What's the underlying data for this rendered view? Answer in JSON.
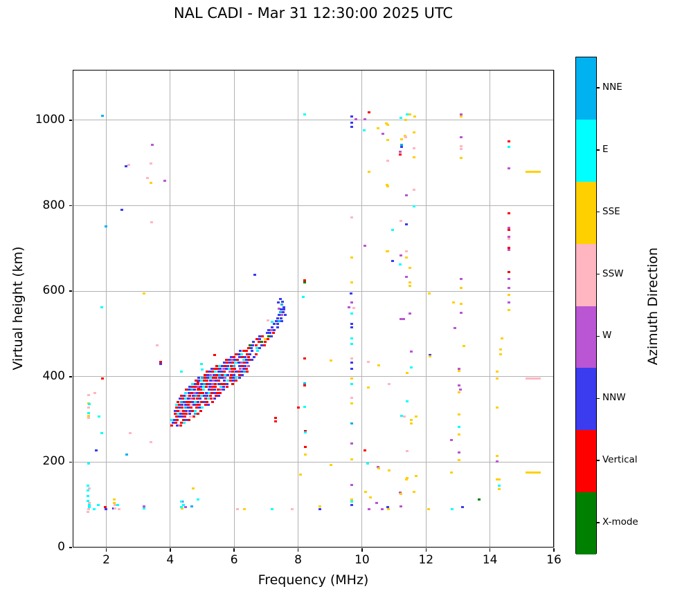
{
  "title": "NAL CADI - Mar 31 12:30:00 2025 UTC",
  "chart_data": {
    "type": "scatter",
    "title": "NAL CADI - Mar 31 12:30:00 2025 UTC",
    "xlabel": "Frequency (MHz)",
    "ylabel": "Virtual height (km)",
    "xlim": [
      0.95,
      16
    ],
    "ylim": [
      0,
      1118
    ],
    "x_ticks": [
      2,
      4,
      6,
      8,
      10,
      12,
      14,
      16
    ],
    "y_ticks": [
      0,
      200,
      400,
      600,
      800,
      1000
    ],
    "grid": true,
    "legend_title": "Azimuth Direction",
    "categories": [
      {
        "key": "N",
        "label": "NNE",
        "color": "#00B2F0"
      },
      {
        "key": "E",
        "label": "E",
        "color": "#00FFFF"
      },
      {
        "key": "S",
        "label": "SSE",
        "color": "#FFD000"
      },
      {
        "key": "s",
        "label": "SSW",
        "color": "#FFB6C1"
      },
      {
        "key": "W",
        "label": "W",
        "color": "#BA55D3"
      },
      {
        "key": "n",
        "label": "NNW",
        "color": "#3B3BF0"
      },
      {
        "key": "V",
        "label": "Vertical",
        "color": "#FF0000"
      },
      {
        "key": "X",
        "label": "X-mode",
        "color": "#008000"
      }
    ],
    "points": [
      [
        1.89,
        1010,
        "N"
      ],
      [
        3.43,
        943,
        "W"
      ],
      [
        2.71,
        896,
        "s"
      ],
      [
        2.61,
        892,
        "n"
      ],
      [
        3.39,
        898,
        "s"
      ],
      [
        3.28,
        864,
        "s"
      ],
      [
        3.39,
        853,
        "S"
      ],
      [
        3.82,
        858,
        "W"
      ],
      [
        2.48,
        790,
        "n"
      ],
      [
        3.41,
        762,
        "s"
      ],
      [
        1.98,
        752,
        "N"
      ],
      [
        3.19,
        594,
        "S"
      ],
      [
        1.85,
        563,
        "E"
      ],
      [
        3.6,
        474,
        "s"
      ],
      [
        3.69,
        435,
        "V"
      ],
      [
        3.69,
        430,
        "n"
      ],
      [
        1.89,
        396,
        "V"
      ],
      [
        1.65,
        362,
        "s"
      ],
      [
        1.44,
        356,
        "s"
      ],
      [
        1.44,
        338,
        "S"
      ],
      [
        1.46,
        335,
        "E"
      ],
      [
        1.44,
        327,
        "s"
      ],
      [
        1.44,
        314,
        "E"
      ],
      [
        1.44,
        309,
        "S"
      ],
      [
        1.44,
        304,
        "s"
      ],
      [
        1.78,
        307,
        "E"
      ],
      [
        1.85,
        267,
        "E"
      ],
      [
        2.74,
        267,
        "s"
      ],
      [
        1.68,
        227,
        "n"
      ],
      [
        2.63,
        218,
        "N"
      ],
      [
        3.39,
        246,
        "s"
      ],
      [
        1.44,
        197,
        "E"
      ],
      [
        1.42,
        144,
        "E"
      ],
      [
        1.46,
        139,
        "s"
      ],
      [
        1.42,
        133,
        "E"
      ],
      [
        1.42,
        121,
        "E"
      ],
      [
        1.42,
        110,
        "E"
      ],
      [
        1.46,
        105,
        "s"
      ],
      [
        1.48,
        100,
        "E"
      ],
      [
        1.48,
        94,
        "E"
      ],
      [
        1.44,
        89,
        "s"
      ],
      [
        1.42,
        84,
        "s"
      ],
      [
        1.63,
        89,
        "E"
      ],
      [
        1.76,
        100,
        "E"
      ],
      [
        1.96,
        94,
        "V"
      ],
      [
        2.0,
        89,
        "n"
      ],
      [
        2.22,
        91,
        "n"
      ],
      [
        2.26,
        112,
        "S"
      ],
      [
        2.26,
        105,
        "S"
      ],
      [
        2.28,
        99,
        "s"
      ],
      [
        2.28,
        92,
        "s"
      ],
      [
        2.41,
        89,
        "s"
      ],
      [
        2.35,
        100,
        "E"
      ],
      [
        3.19,
        97,
        "W"
      ],
      [
        3.19,
        91,
        "E"
      ],
      [
        4.71,
        139,
        "S"
      ],
      [
        4.86,
        113,
        "E"
      ],
      [
        4.38,
        107,
        "n"
      ],
      [
        4.42,
        100,
        "E"
      ],
      [
        4.49,
        94,
        "W"
      ],
      [
        4.38,
        91,
        "S"
      ],
      [
        4.68,
        97,
        "N"
      ],
      [
        4.36,
        108,
        "E"
      ],
      [
        4.36,
        95,
        "E"
      ],
      [
        6.11,
        89,
        "s"
      ],
      [
        6.31,
        89,
        "S"
      ],
      [
        7.19,
        89,
        "E"
      ],
      [
        7.82,
        89,
        "s"
      ],
      [
        8.69,
        97,
        "S"
      ],
      [
        8.69,
        89,
        "n"
      ],
      [
        9.68,
        146,
        "W"
      ],
      [
        9.68,
        113,
        "S"
      ],
      [
        9.68,
        107,
        "E"
      ],
      [
        9.68,
        100,
        "n"
      ],
      [
        10.1,
        131,
        "S"
      ],
      [
        10.27,
        117,
        "S"
      ],
      [
        10.22,
        89,
        "W"
      ],
      [
        10.46,
        105,
        "W"
      ],
      [
        10.64,
        89,
        "W"
      ],
      [
        10.83,
        89,
        "S"
      ],
      [
        10.81,
        94,
        "n"
      ],
      [
        11.22,
        97,
        "W"
      ],
      [
        11.2,
        128,
        "W"
      ],
      [
        11.22,
        125,
        "S"
      ],
      [
        11.39,
        160,
        "S"
      ],
      [
        11.63,
        131,
        "S"
      ],
      [
        12.09,
        89,
        "S"
      ],
      [
        12.82,
        89,
        "E"
      ],
      [
        13.15,
        95,
        "n"
      ],
      [
        13.67,
        112,
        "X"
      ],
      [
        14.3,
        159,
        "S"
      ],
      [
        14.3,
        144,
        "E"
      ],
      [
        14.3,
        136,
        "S"
      ],
      [
        8.21,
        1013,
        "E"
      ],
      [
        9.68,
        1008,
        "n"
      ],
      [
        9.81,
        1002,
        "W"
      ],
      [
        10.09,
        1002,
        "W"
      ],
      [
        9.68,
        995,
        "n"
      ],
      [
        9.68,
        984,
        "n"
      ],
      [
        10.22,
        1018,
        "V"
      ],
      [
        10.07,
        976,
        "E"
      ],
      [
        10.51,
        981,
        "S"
      ],
      [
        10.81,
        990,
        "S"
      ],
      [
        10.66,
        969,
        "W"
      ],
      [
        10.81,
        953,
        "S"
      ],
      [
        10.81,
        906,
        "s"
      ],
      [
        10.22,
        879,
        "S"
      ],
      [
        10.81,
        846,
        "S"
      ],
      [
        9.68,
        772,
        "s"
      ],
      [
        10.09,
        707,
        "W"
      ],
      [
        10.81,
        693,
        "S"
      ],
      [
        9.68,
        678,
        "S"
      ],
      [
        8.21,
        626,
        "V"
      ],
      [
        8.21,
        621,
        "X"
      ],
      [
        9.68,
        620,
        "S"
      ],
      [
        11.41,
        1013,
        "E"
      ],
      [
        11.5,
        1013,
        "S"
      ],
      [
        11.65,
        1008,
        "S"
      ],
      [
        11.22,
        1006,
        "E"
      ],
      [
        11.37,
        1000,
        "S"
      ],
      [
        10.77,
        992,
        "S"
      ],
      [
        11.63,
        972,
        "S"
      ],
      [
        11.35,
        964,
        "S"
      ],
      [
        11.37,
        960,
        "s"
      ],
      [
        11.24,
        955,
        "S"
      ],
      [
        11.24,
        943,
        "N"
      ],
      [
        11.24,
        938,
        "n"
      ],
      [
        11.63,
        935,
        "s"
      ],
      [
        11.2,
        926,
        "W"
      ],
      [
        11.2,
        919,
        "V"
      ],
      [
        11.63,
        913,
        "S"
      ],
      [
        13.1,
        1013,
        "W"
      ],
      [
        13.1,
        1008,
        "S"
      ],
      [
        13.1,
        961,
        "W"
      ],
      [
        13.1,
        940,
        "s"
      ],
      [
        13.1,
        932,
        "s"
      ],
      [
        13.1,
        911,
        "S"
      ],
      [
        10.79,
        848,
        "S"
      ],
      [
        11.63,
        838,
        "s"
      ],
      [
        11.39,
        824,
        "W"
      ],
      [
        11.63,
        799,
        "E"
      ],
      [
        11.22,
        764,
        "s"
      ],
      [
        11.39,
        757,
        "n"
      ],
      [
        10.96,
        744,
        "E"
      ],
      [
        10.79,
        694,
        "S"
      ],
      [
        11.39,
        693,
        "s"
      ],
      [
        11.22,
        683,
        "W"
      ],
      [
        11.39,
        678,
        "S"
      ],
      [
        10.96,
        671,
        "n"
      ],
      [
        11.2,
        663,
        "E"
      ],
      [
        11.5,
        654,
        "S"
      ],
      [
        11.39,
        633,
        "W"
      ],
      [
        11.5,
        620,
        "S"
      ],
      [
        11.5,
        612,
        "S"
      ],
      [
        13.1,
        628,
        "W"
      ],
      [
        13.1,
        608,
        "S"
      ],
      [
        12.11,
        594,
        "S"
      ],
      [
        12.87,
        573,
        "S"
      ],
      [
        13.1,
        570,
        "S"
      ],
      [
        13.1,
        549,
        "W"
      ],
      [
        11.5,
        547,
        "W"
      ],
      [
        11.22,
        534,
        "W"
      ],
      [
        14.6,
        951,
        "V"
      ],
      [
        14.6,
        938,
        "E"
      ],
      [
        14.6,
        888,
        "W"
      ],
      [
        15.35,
        880,
        "S",
        22
      ],
      [
        14.6,
        782,
        "V"
      ],
      [
        14.6,
        749,
        "W"
      ],
      [
        14.6,
        744,
        "V"
      ],
      [
        14.6,
        727,
        "W"
      ],
      [
        14.6,
        722,
        "s"
      ],
      [
        14.6,
        702,
        "V"
      ],
      [
        14.6,
        697,
        "W"
      ],
      [
        14.6,
        644,
        "V"
      ],
      [
        14.6,
        628,
        "W"
      ],
      [
        14.6,
        608,
        "W"
      ],
      [
        14.6,
        592,
        "S"
      ],
      [
        14.6,
        574,
        "W"
      ],
      [
        14.6,
        556,
        "S"
      ],
      [
        12.91,
        514,
        "W"
      ],
      [
        14.38,
        490,
        "S"
      ],
      [
        13.19,
        472,
        "S"
      ],
      [
        14.34,
        463,
        "S"
      ],
      [
        14.34,
        453,
        "S"
      ],
      [
        12.13,
        451,
        "n"
      ],
      [
        12.13,
        448,
        "S"
      ],
      [
        13.04,
        419,
        "W"
      ],
      [
        13.04,
        413,
        "S"
      ],
      [
        14.23,
        411,
        "S"
      ],
      [
        14.23,
        396,
        "S"
      ],
      [
        15.35,
        395,
        "s",
        22
      ],
      [
        13.04,
        380,
        "W"
      ],
      [
        13.08,
        370,
        "W"
      ],
      [
        13.04,
        364,
        "S"
      ],
      [
        14.23,
        328,
        "S"
      ],
      [
        13.04,
        312,
        "S"
      ],
      [
        13.04,
        283,
        "E"
      ],
      [
        13.04,
        265,
        "S"
      ],
      [
        12.8,
        251,
        "W"
      ],
      [
        13.04,
        222,
        "W"
      ],
      [
        13.04,
        204,
        "S"
      ],
      [
        14.23,
        214,
        "S"
      ],
      [
        14.23,
        201,
        "W"
      ],
      [
        12.8,
        175,
        "S"
      ],
      [
        15.35,
        175,
        "S",
        22
      ],
      [
        14.23,
        159,
        "S"
      ],
      [
        8.17,
        586,
        "E"
      ],
      [
        9.66,
        594,
        "n"
      ],
      [
        9.68,
        574,
        "W"
      ],
      [
        9.58,
        563,
        "W"
      ],
      [
        9.75,
        561,
        "s"
      ],
      [
        9.68,
        547,
        "E"
      ],
      [
        9.68,
        524,
        "n"
      ],
      [
        9.68,
        515,
        "n"
      ],
      [
        9.68,
        490,
        "E"
      ],
      [
        9.68,
        477,
        "E"
      ],
      [
        8.21,
        442,
        "V"
      ],
      [
        9.03,
        437,
        "S"
      ],
      [
        9.68,
        442,
        "s"
      ],
      [
        9.68,
        432,
        "n"
      ],
      [
        9.68,
        419,
        "n"
      ],
      [
        10.2,
        435,
        "s"
      ],
      [
        10.53,
        427,
        "S"
      ],
      [
        9.68,
        396,
        "S"
      ],
      [
        8.21,
        385,
        "N"
      ],
      [
        8.21,
        380,
        "V"
      ],
      [
        9.68,
        383,
        "E"
      ],
      [
        10.2,
        375,
        "S"
      ],
      [
        9.68,
        351,
        "s"
      ],
      [
        8.02,
        328,
        "V"
      ],
      [
        8.21,
        330,
        "E"
      ],
      [
        9.68,
        337,
        "S"
      ],
      [
        9.68,
        291,
        "N"
      ],
      [
        8.23,
        273,
        "V"
      ],
      [
        8.23,
        269,
        "E"
      ],
      [
        8.23,
        236,
        "V"
      ],
      [
        9.68,
        244,
        "W"
      ],
      [
        10.09,
        228,
        "V"
      ],
      [
        8.23,
        218,
        "S"
      ],
      [
        9.68,
        207,
        "S"
      ],
      [
        10.18,
        197,
        "E"
      ],
      [
        10.51,
        189,
        "W"
      ],
      [
        10.53,
        186,
        "S"
      ],
      [
        9.03,
        193,
        "S"
      ],
      [
        8.08,
        170,
        "S"
      ],
      [
        11.31,
        535,
        "W"
      ],
      [
        11.54,
        458,
        "W"
      ],
      [
        11.54,
        422,
        "E"
      ],
      [
        11.41,
        409,
        "S"
      ],
      [
        10.85,
        383,
        "s"
      ],
      [
        11.41,
        343,
        "E"
      ],
      [
        11.24,
        309,
        "E"
      ],
      [
        11.33,
        306,
        "s"
      ],
      [
        11.7,
        306,
        "S"
      ],
      [
        11.54,
        299,
        "S"
      ],
      [
        11.54,
        290,
        "S"
      ],
      [
        11.41,
        225,
        "s"
      ],
      [
        10.85,
        181,
        "S"
      ],
      [
        11.7,
        167,
        "S"
      ],
      [
        11.41,
        162,
        "S"
      ],
      [
        6.65,
        639,
        "n"
      ],
      [
        7.06,
        532,
        "s"
      ],
      [
        7.19,
        529,
        "E"
      ],
      [
        7.3,
        304,
        "V"
      ],
      [
        7.3,
        296,
        "V"
      ],
      [
        4.97,
        429,
        "E"
      ],
      [
        5.01,
        416,
        "E"
      ],
      [
        5.14,
        403,
        "E"
      ],
      [
        4.86,
        388,
        "V"
      ],
      [
        4.9,
        375,
        "V"
      ],
      [
        5.27,
        411,
        "S"
      ],
      [
        5.38,
        450,
        "V"
      ],
      [
        4.36,
        412,
        "E"
      ],
      [
        7.45,
        581,
        "n"
      ],
      [
        7.52,
        575,
        "n"
      ],
      [
        7.38,
        573,
        "n"
      ],
      [
        7.5,
        568,
        "N"
      ],
      [
        7.56,
        562,
        "n"
      ],
      [
        7.4,
        559,
        "W"
      ]
    ],
    "cluster_df": 0.09,
    "cluster_rows": [
      [
        285,
        4.05,
        "V.nV"
      ],
      [
        292,
        4.08,
        "nV.VE"
      ],
      [
        299,
        4.05,
        "EnV.VnV"
      ],
      [
        306,
        4.1,
        ".VnnV.sV"
      ],
      [
        313,
        4.15,
        "VEnVVn.NV"
      ],
      [
        320,
        4.15,
        "nVsVnnVE.V"
      ],
      [
        327,
        4.2,
        "VnVNnV.VnE"
      ],
      [
        334,
        4.2,
        "EVnnVsnVV.Vn"
      ],
      [
        341,
        4.25,
        "VNnVVnEnVnV.V"
      ],
      [
        348,
        4.3,
        "nVEnWVVn.VEVn"
      ],
      [
        355,
        4.35,
        "VnsVnNVEnnV.Vn"
      ],
      [
        362,
        4.4,
        ".EnVWnVVnEVnVV"
      ],
      [
        369,
        4.5,
        "VnNnVVE.nVnVWn"
      ],
      [
        376,
        4.6,
        "nVVWnEVnVV.EnV"
      ],
      [
        383,
        4.7,
        "EnVnNVnWVnVVn.V"
      ],
      [
        390,
        4.8,
        "VnEVVnWnV.nEVnV"
      ],
      [
        397,
        4.9,
        "nNVnEVVnnW.VnEn"
      ],
      [
        404,
        5.0,
        ".VnWnVNVEnVn.Vn"
      ],
      [
        411,
        5.15,
        "VnVEnnV.WVnVnNV"
      ],
      [
        418,
        5.3,
        "nVVnWnEVV.WnV"
      ],
      [
        425,
        5.45,
        "VEnVnVN.nVnW"
      ],
      [
        432,
        5.6,
        ".nVnVEnWVn."
      ],
      [
        439,
        5.75,
        "VnWnV.EnVn"
      ],
      [
        446,
        5.9,
        "nV.nVnV.n"
      ],
      [
        453,
        6.05,
        "VnE.Vn.V"
      ],
      [
        460,
        6.2,
        "nVV.n.E"
      ],
      [
        467,
        6.35,
        ".Vn.En"
      ],
      [
        474,
        6.5,
        "XnV.nV"
      ],
      [
        481,
        6.6,
        "n.VXV"
      ],
      [
        488,
        6.7,
        "Vn.SV"
      ],
      [
        495,
        6.8,
        "nV.Xn"
      ],
      [
        502,
        6.95,
        ".nnV"
      ],
      [
        509,
        7.08,
        "nWn"
      ],
      [
        516,
        7.18,
        "n.n"
      ],
      [
        523,
        7.26,
        "nn"
      ],
      [
        530,
        7.32,
        "nNn"
      ],
      [
        537,
        7.37,
        "nn"
      ],
      [
        544,
        7.41,
        "nWn"
      ],
      [
        551,
        7.44,
        "Nn"
      ],
      [
        558,
        7.47,
        "nn"
      ]
    ]
  }
}
